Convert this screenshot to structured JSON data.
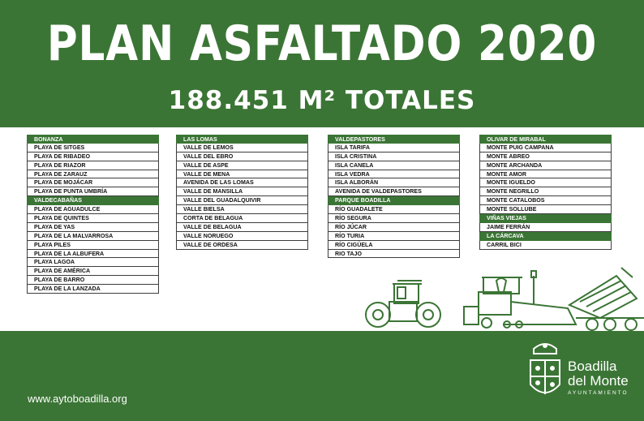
{
  "header": {
    "title": "PLAN ASFALTADO 2020",
    "subtitle": "188.451 M² TOTALES"
  },
  "columns": [
    {
      "rows": [
        {
          "text": "BONANZA",
          "header": true
        },
        {
          "text": "PLAYA DE SITGES"
        },
        {
          "text": "PLAYA DE RIBADEO"
        },
        {
          "text": "PLAYA DE RIAZOR"
        },
        {
          "text": "PLAYA DE ZARAUZ"
        },
        {
          "text": "PLAYA DE MOJÁCAR"
        },
        {
          "text": "PLAYA DE PUNTA UMBRÍA"
        },
        {
          "text": "VALDECABAÑAS",
          "header": true
        },
        {
          "text": "PLAYA DE AGUADULCE"
        },
        {
          "text": "PLAYA DE QUINTES"
        },
        {
          "text": "PLAYA DE YAS"
        },
        {
          "text": "PLAYA DE LA MALVARROSA"
        },
        {
          "text": "PLAYA PILES"
        },
        {
          "text": "PLAYA DE LA ALBUFERA"
        },
        {
          "text": "PLAYA LAGOA"
        },
        {
          "text": "PLAYA DE AMÉRICA"
        },
        {
          "text": "PLAYA DE BARRO"
        },
        {
          "text": "PLAYA DE LA LANZADA"
        }
      ]
    },
    {
      "rows": [
        {
          "text": "LAS LOMAS",
          "header": true
        },
        {
          "text": "VALLE DE LEMOS"
        },
        {
          "text": "VALLE DEL EBRO"
        },
        {
          "text": "VALLE DE ASPE"
        },
        {
          "text": "VALLE DE MENA"
        },
        {
          "text": "AVENIDA DE LAS LOMAS"
        },
        {
          "text": "VALLE DE MANSILLA"
        },
        {
          "text": "VALLE DEL GUADALQUIVIR"
        },
        {
          "text": "VALLE BIELSA"
        },
        {
          "text": "CORTA DE BELAGUA"
        },
        {
          "text": "VALLE DE BELAGUA"
        },
        {
          "text": "VALLE NORUEGO"
        },
        {
          "text": "VALLE DE ORDESA"
        }
      ]
    },
    {
      "rows": [
        {
          "text": "VALDEPASTORES",
          "header": true
        },
        {
          "text": "ISLA TARIFA"
        },
        {
          "text": "ISLA CRISTINA"
        },
        {
          "text": "ISLA CANELA"
        },
        {
          "text": "ISLA VEDRA"
        },
        {
          "text": "ISLA ALBORÁN"
        },
        {
          "text": "AVENIDA DE VALDEPASTORES"
        },
        {
          "text": "PARQUE BOADILLA",
          "header": true
        },
        {
          "text": "RÍO GUADALETE"
        },
        {
          "text": "RÍO SEGURA"
        },
        {
          "text": "RÍO JÚCAR"
        },
        {
          "text": "RÍO TURIA"
        },
        {
          "text": "RÍO CIGÜELA"
        },
        {
          "text": "RIO TAJO"
        }
      ]
    },
    {
      "rows": [
        {
          "text": "OLIVAR DE MIRABAL",
          "header": true
        },
        {
          "text": "MONTE PUIG CAMPANA"
        },
        {
          "text": "MONTE ABREO"
        },
        {
          "text": "MONTE ARCHANDA"
        },
        {
          "text": "MONTE AMOR"
        },
        {
          "text": "MONTE IGUELDO"
        },
        {
          "text": "MONTE NEGRILLO"
        },
        {
          "text": "MONTE CATALOBOS"
        },
        {
          "text": "MONTE SOLLUBE"
        },
        {
          "text": "VIÑAS VIEJAS",
          "header": true
        },
        {
          "text": "JAIME FERRÁN"
        },
        {
          "text": "LA CÁRCAVA",
          "header": true
        },
        {
          "text": "CARRIL BICI"
        }
      ]
    }
  ],
  "footer": {
    "url": "www.aytoboadilla.org",
    "brand_line1": "Boadilla",
    "brand_line2": "del Monte",
    "brand_line3": "AYUNTAMIENTO"
  },
  "colors": {
    "brand_green": "#3b7535",
    "text_dark": "#111111"
  }
}
